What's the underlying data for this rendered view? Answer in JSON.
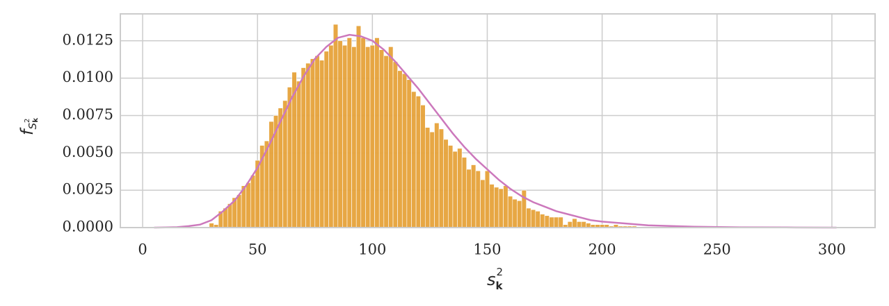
{
  "chart_data": {
    "type": "histogram",
    "xlabel": {
      "base": "s",
      "sub": "k",
      "sup": "2"
    },
    "ylabel": {
      "base": "f",
      "sub": "S",
      "subsup": "2",
      "subsub": "k"
    },
    "color": "#e6a23a",
    "bins": [
      29,
      31,
      33,
      35,
      37,
      39,
      41,
      43,
      45,
      47,
      49,
      51,
      53,
      55,
      57,
      59,
      61,
      63,
      65,
      67,
      69,
      71,
      73,
      75,
      77,
      79,
      81,
      83,
      85,
      87,
      89,
      91,
      93,
      95,
      97,
      99,
      101,
      103,
      105,
      107,
      109,
      111,
      113,
      115,
      117,
      119,
      121,
      123,
      125,
      127,
      129,
      131,
      133,
      135,
      137,
      139,
      141,
      143,
      145,
      147,
      149,
      151,
      153,
      155,
      157,
      159,
      161,
      163,
      165,
      167,
      169,
      171,
      173,
      175,
      177,
      179,
      181,
      183,
      185,
      187,
      189,
      191,
      193,
      195,
      197,
      199,
      201,
      203,
      205,
      207,
      209,
      211,
      213,
      215
    ],
    "values": [
      0.0003,
      0.0002,
      0.0011,
      0.0013,
      0.0016,
      0.002,
      0.0022,
      0.0028,
      0.003,
      0.0035,
      0.0045,
      0.0055,
      0.0058,
      0.0071,
      0.0075,
      0.008,
      0.0085,
      0.0094,
      0.0104,
      0.0098,
      0.0107,
      0.011,
      0.0113,
      0.0115,
      0.0112,
      0.0118,
      0.0122,
      0.0136,
      0.0125,
      0.0122,
      0.0127,
      0.0121,
      0.0135,
      0.0127,
      0.0121,
      0.0122,
      0.0127,
      0.0119,
      0.0115,
      0.0121,
      0.0111,
      0.0105,
      0.0103,
      0.0099,
      0.0091,
      0.0088,
      0.0082,
      0.0067,
      0.0064,
      0.007,
      0.0066,
      0.0059,
      0.0055,
      0.0051,
      0.0053,
      0.0047,
      0.0039,
      0.0042,
      0.0038,
      0.0032,
      0.0038,
      0.0029,
      0.0027,
      0.0026,
      0.0028,
      0.0021,
      0.0019,
      0.0018,
      0.0025,
      0.0013,
      0.0012,
      0.0011,
      0.0009,
      0.0008,
      0.0007,
      0.0007,
      0.0007,
      0.0002,
      0.0004,
      0.0006,
      0.0004,
      0.0004,
      0.0003,
      0.0002,
      0.0002,
      0.0002,
      0.0002,
      0.0001,
      0.0002,
      0.0001,
      0.0001,
      0.0001,
      0.0001
    ],
    "curve": {
      "color": "#cc78bc",
      "x": [
        5,
        10,
        15,
        20,
        25,
        30,
        35,
        40,
        45,
        50,
        55,
        60,
        65,
        70,
        75,
        80,
        85,
        90,
        95,
        100,
        105,
        110,
        115,
        120,
        125,
        130,
        135,
        140,
        145,
        150,
        155,
        160,
        165,
        170,
        175,
        180,
        185,
        190,
        195,
        200,
        220,
        240,
        260,
        280,
        302
      ],
      "y": [
        0,
        1e-05,
        3e-05,
        0.0001,
        0.0002,
        0.0005,
        0.0011,
        0.0018,
        0.0028,
        0.004,
        0.0055,
        0.0071,
        0.0087,
        0.0101,
        0.0113,
        0.0121,
        0.0127,
        0.0129,
        0.0128,
        0.0125,
        0.0119,
        0.0111,
        0.0102,
        0.0093,
        0.0083,
        0.0073,
        0.0063,
        0.0054,
        0.0046,
        0.0039,
        0.0032,
        0.0026,
        0.0021,
        0.0017,
        0.0014,
        0.0011,
        0.0009,
        0.0007,
        0.0005,
        0.0004,
        0.00015,
        6e-05,
        2e-05,
        1e-05,
        0
      ]
    },
    "xlim": [
      -9.7,
      318.8
    ],
    "ylim": [
      0,
      0.0143
    ],
    "xticks": [
      0,
      50,
      100,
      150,
      200,
      250,
      300
    ],
    "yticks": [
      {
        "value": 0,
        "label": "0.0000"
      },
      {
        "value": 0.0025,
        "label": "0.0025"
      },
      {
        "value": 0.005,
        "label": "0.0050"
      },
      {
        "value": 0.0075,
        "label": "0.0075"
      },
      {
        "value": 0.01,
        "label": "0.0100"
      },
      {
        "value": 0.0125,
        "label": "0.0125"
      }
    ],
    "grid": true
  }
}
